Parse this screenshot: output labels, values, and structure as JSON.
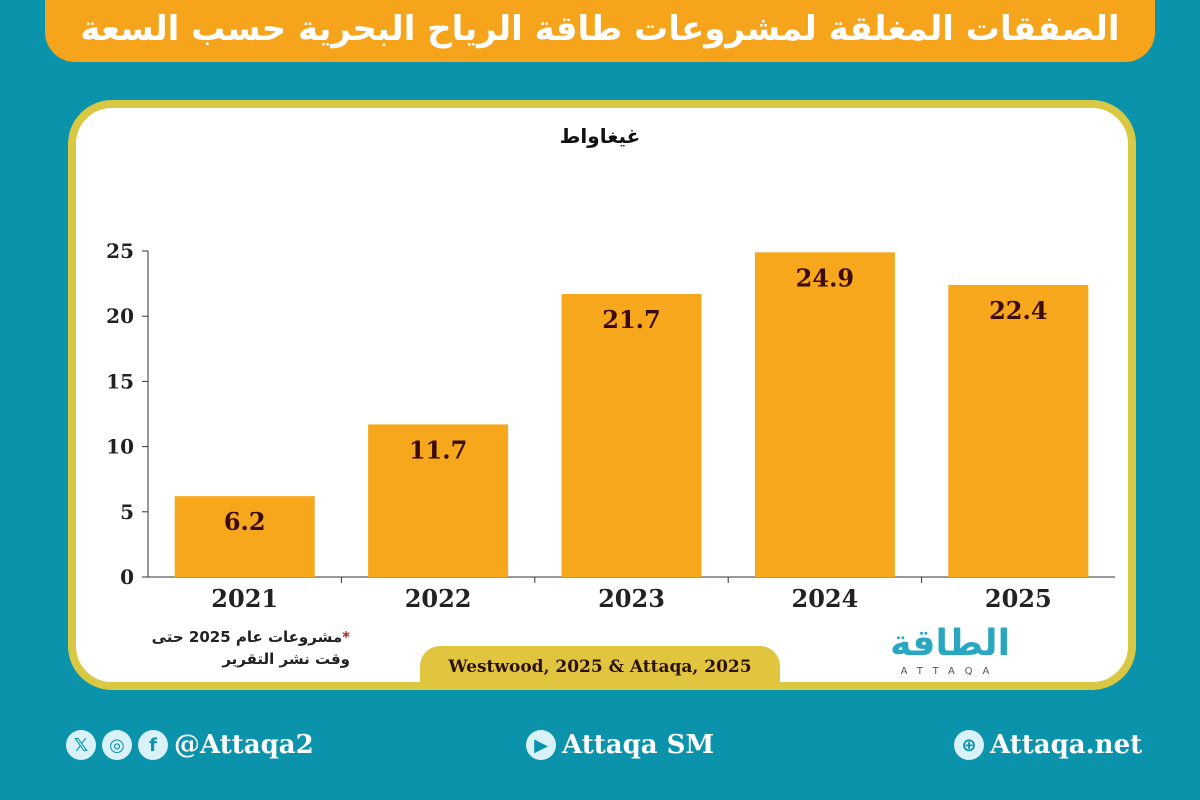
{
  "title": "الصفقات المغلقة لمشروعات طاقة الرياح البحرية حسب السعة",
  "chart_data": {
    "type": "bar",
    "ylabel": "غيغاواط",
    "categories": [
      "2021",
      "2022",
      "2023",
      "2024",
      "2025"
    ],
    "values": [
      6.2,
      11.7,
      21.7,
      24.9,
      22.4
    ],
    "data_labels": [
      "6.2",
      "11.7",
      "21.7",
      "24.9",
      "22.4"
    ],
    "yticks": [
      "0",
      "5",
      "10",
      "15",
      "20",
      "25"
    ],
    "ylim": [
      0,
      25
    ],
    "grid": false,
    "bar_color": "#f7a71c",
    "label_color": "#3b0b0b"
  },
  "note": {
    "star": "*",
    "line1": "مشروعات عام 2025 حتى",
    "line2": "وقت نشر التقرير"
  },
  "source": "Westwood, 2025 & Attaqa, 2025",
  "logo": {
    "arabic": "الطاقة",
    "latin": "ATTAQA"
  },
  "footer": {
    "social": "@Attaqa2",
    "youtube": "Attaqa SM",
    "website": "Attaqa.net"
  },
  "colors": {
    "background": "#0b93ab",
    "title_bar": "#f6a41c",
    "border": "#d9c843"
  }
}
